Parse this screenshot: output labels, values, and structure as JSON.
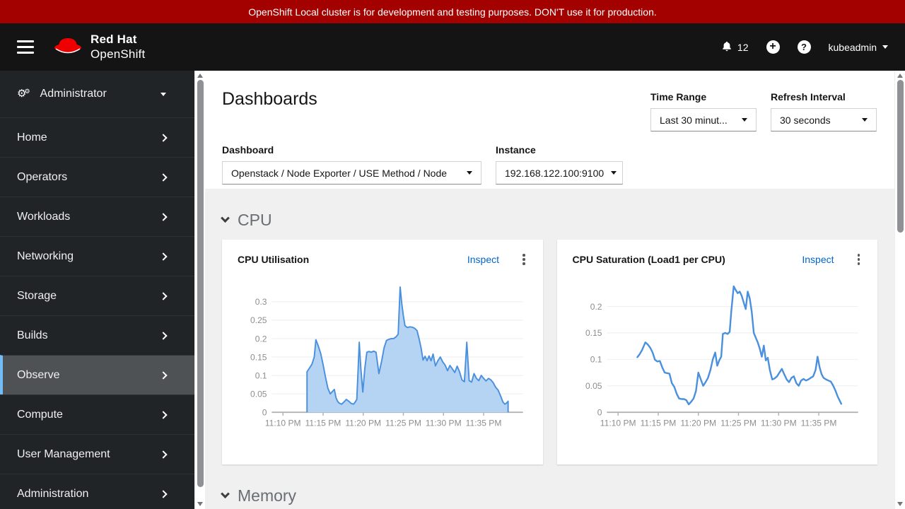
{
  "banner": {
    "text": "OpenShift Local cluster is for development and testing purposes. DON'T use it for production.",
    "background": "#a30000"
  },
  "masthead": {
    "brand_line1": "Red Hat",
    "brand_line2": "OpenShift",
    "notification_count": "12",
    "username": "kubeadmin"
  },
  "sidebar": {
    "perspective_label": "Administrator",
    "selected_accent": "#73bcf7",
    "items": [
      {
        "label": "Home",
        "selected": false
      },
      {
        "label": "Operators",
        "selected": false
      },
      {
        "label": "Workloads",
        "selected": false
      },
      {
        "label": "Networking",
        "selected": false
      },
      {
        "label": "Storage",
        "selected": false
      },
      {
        "label": "Builds",
        "selected": false
      },
      {
        "label": "Observe",
        "selected": true
      },
      {
        "label": "Compute",
        "selected": false
      },
      {
        "label": "User Management",
        "selected": false
      },
      {
        "label": "Administration",
        "selected": false
      }
    ]
  },
  "page": {
    "title": "Dashboards",
    "time_range": {
      "label": "Time Range",
      "value": "Last 30 minut..."
    },
    "refresh_interval": {
      "label": "Refresh Interval",
      "value": "30 seconds"
    },
    "dashboard": {
      "label": "Dashboard",
      "value": "Openstack / Node Exporter / USE Method / Node"
    },
    "instance": {
      "label": "Instance",
      "value": "192.168.122.100:9100"
    },
    "sections": {
      "cpu": "CPU",
      "memory": "Memory"
    },
    "inspect_label": "Inspect"
  },
  "icons": {
    "hamburger": "three-bars",
    "bell": "notification-bell",
    "plus-circle": "add",
    "question-circle": "help",
    "caret-down": "css-triangle",
    "chevron-right": "css-angle",
    "chevron-down": "css-angle",
    "cogs": "⚙",
    "kebab": "three-dots-vertical"
  },
  "colors": {
    "link": "#0066cc",
    "chart_line": "#4a90dd",
    "chart_area_fill": "#b5d3f2",
    "grid": "#ededed",
    "axis": "#b0b3b6",
    "tick_label": "#8b8d8f"
  },
  "chart_data": [
    {
      "type": "area",
      "title": "CPU Utilisation",
      "xlabel": "time",
      "ylabel": "",
      "legend": "none",
      "grid": "horizontal",
      "x_tick_labels": [
        "11:10 PM",
        "11:15 PM",
        "11:20 PM",
        "11:25 PM",
        "11:30 PM",
        "11:35 PM"
      ],
      "x_tick_minutes": [
        10,
        15,
        20,
        25,
        30,
        35
      ],
      "x_domain_minutes": [
        8.6,
        39.9
      ],
      "y_ticks": [
        0,
        0.05,
        0.1,
        0.15,
        0.2,
        0.25,
        0.3
      ],
      "ylim": [
        0,
        0.352
      ],
      "points_minute_value": [
        [
          13.0,
          0.11
        ],
        [
          13.3,
          0.12
        ],
        [
          13.6,
          0.13
        ],
        [
          13.9,
          0.15
        ],
        [
          14.1,
          0.197
        ],
        [
          14.4,
          0.18
        ],
        [
          14.7,
          0.16
        ],
        [
          15.0,
          0.13
        ],
        [
          15.3,
          0.095
        ],
        [
          15.6,
          0.065
        ],
        [
          15.9,
          0.05
        ],
        [
          16.1,
          0.055
        ],
        [
          16.4,
          0.062
        ],
        [
          16.6,
          0.04
        ],
        [
          16.8,
          0.03
        ],
        [
          17.0,
          0.025
        ],
        [
          17.3,
          0.022
        ],
        [
          17.6,
          0.028
        ],
        [
          17.9,
          0.035
        ],
        [
          18.2,
          0.03
        ],
        [
          18.5,
          0.024
        ],
        [
          18.8,
          0.022
        ],
        [
          19.0,
          0.028
        ],
        [
          19.2,
          0.035
        ],
        [
          19.35,
          0.11
        ],
        [
          19.5,
          0.19
        ],
        [
          19.7,
          0.12
        ],
        [
          19.95,
          0.055
        ],
        [
          20.2,
          0.12
        ],
        [
          20.45,
          0.163
        ],
        [
          20.7,
          0.165
        ],
        [
          21.0,
          0.163
        ],
        [
          21.3,
          0.166
        ],
        [
          21.6,
          0.163
        ],
        [
          21.95,
          0.105
        ],
        [
          22.3,
          0.14
        ],
        [
          22.6,
          0.175
        ],
        [
          22.9,
          0.195
        ],
        [
          23.2,
          0.198
        ],
        [
          23.5,
          0.2
        ],
        [
          23.8,
          0.2
        ],
        [
          24.1,
          0.205
        ],
        [
          24.35,
          0.212
        ],
        [
          24.6,
          0.34
        ],
        [
          24.8,
          0.295
        ],
        [
          25.0,
          0.262
        ],
        [
          25.2,
          0.235
        ],
        [
          25.5,
          0.23
        ],
        [
          25.8,
          0.232
        ],
        [
          26.1,
          0.231
        ],
        [
          26.4,
          0.228
        ],
        [
          26.7,
          0.222
        ],
        [
          27.0,
          0.196
        ],
        [
          27.2,
          0.175
        ],
        [
          27.45,
          0.142
        ],
        [
          27.7,
          0.152
        ],
        [
          27.95,
          0.14
        ],
        [
          28.2,
          0.153
        ],
        [
          28.45,
          0.14
        ],
        [
          28.7,
          0.158
        ],
        [
          29.0,
          0.126
        ],
        [
          29.3,
          0.14
        ],
        [
          29.6,
          0.15
        ],
        [
          29.9,
          0.137
        ],
        [
          30.2,
          0.128
        ],
        [
          30.5,
          0.113
        ],
        [
          30.8,
          0.127
        ],
        [
          31.1,
          0.118
        ],
        [
          31.4,
          0.108
        ],
        [
          31.7,
          0.125
        ],
        [
          32.0,
          0.11
        ],
        [
          32.3,
          0.088
        ],
        [
          32.6,
          0.083
        ],
        [
          32.9,
          0.19
        ],
        [
          33.2,
          0.086
        ],
        [
          33.5,
          0.082
        ],
        [
          33.8,
          0.105
        ],
        [
          34.1,
          0.092
        ],
        [
          34.4,
          0.086
        ],
        [
          34.7,
          0.1
        ],
        [
          35.0,
          0.092
        ],
        [
          35.3,
          0.085
        ],
        [
          35.6,
          0.092
        ],
        [
          35.9,
          0.088
        ],
        [
          36.2,
          0.08
        ],
        [
          36.5,
          0.068
        ],
        [
          36.8,
          0.06
        ],
        [
          37.1,
          0.045
        ],
        [
          37.4,
          0.028
        ],
        [
          37.65,
          0.022
        ],
        [
          37.85,
          0.025
        ],
        [
          38.05,
          0.03
        ]
      ]
    },
    {
      "type": "line",
      "title": "CPU Saturation (Load1 per CPU)",
      "xlabel": "time",
      "ylabel": "",
      "legend": "none",
      "grid": "horizontal",
      "x_tick_labels": [
        "11:10 PM",
        "11:15 PM",
        "11:20 PM",
        "11:25 PM",
        "11:30 PM",
        "11:35 PM"
      ],
      "x_tick_minutes": [
        10,
        15,
        20,
        25,
        30,
        35
      ],
      "x_domain_minutes": [
        8.6,
        39.9
      ],
      "y_ticks": [
        0,
        0.05,
        0.1,
        0.15,
        0.2
      ],
      "ylim": [
        0,
        0.245
      ],
      "points_minute_value": [
        [
          12.4,
          0.104
        ],
        [
          12.7,
          0.11
        ],
        [
          13.0,
          0.118
        ],
        [
          13.4,
          0.132
        ],
        [
          13.7,
          0.128
        ],
        [
          14.0,
          0.122
        ],
        [
          14.3,
          0.113
        ],
        [
          14.6,
          0.099
        ],
        [
          14.9,
          0.096
        ],
        [
          15.2,
          0.097
        ],
        [
          15.5,
          0.085
        ],
        [
          15.8,
          0.075
        ],
        [
          16.1,
          0.074
        ],
        [
          16.4,
          0.073
        ],
        [
          16.7,
          0.055
        ],
        [
          17.0,
          0.048
        ],
        [
          17.3,
          0.035
        ],
        [
          17.6,
          0.026
        ],
        [
          17.9,
          0.025
        ],
        [
          18.2,
          0.025
        ],
        [
          18.5,
          0.023
        ],
        [
          18.8,
          0.015
        ],
        [
          19.1,
          0.02
        ],
        [
          19.4,
          0.026
        ],
        [
          19.7,
          0.04
        ],
        [
          20.0,
          0.075
        ],
        [
          20.3,
          0.062
        ],
        [
          20.6,
          0.05
        ],
        [
          20.9,
          0.057
        ],
        [
          21.2,
          0.065
        ],
        [
          21.5,
          0.08
        ],
        [
          21.8,
          0.1
        ],
        [
          22.1,
          0.113
        ],
        [
          22.35,
          0.088
        ],
        [
          22.6,
          0.098
        ],
        [
          22.85,
          0.105
        ],
        [
          23.05,
          0.148
        ],
        [
          23.35,
          0.15
        ],
        [
          23.65,
          0.148
        ],
        [
          23.9,
          0.152
        ],
        [
          24.1,
          0.19
        ],
        [
          24.4,
          0.238
        ],
        [
          24.65,
          0.231
        ],
        [
          24.9,
          0.225
        ],
        [
          25.15,
          0.228
        ],
        [
          25.4,
          0.22
        ],
        [
          25.65,
          0.207
        ],
        [
          25.9,
          0.195
        ],
        [
          26.15,
          0.228
        ],
        [
          26.4,
          0.215
        ],
        [
          26.65,
          0.19
        ],
        [
          26.9,
          0.15
        ],
        [
          27.15,
          0.141
        ],
        [
          27.4,
          0.132
        ],
        [
          27.65,
          0.12
        ],
        [
          27.9,
          0.105
        ],
        [
          28.15,
          0.126
        ],
        [
          28.4,
          0.098
        ],
        [
          28.65,
          0.103
        ],
        [
          28.9,
          0.08
        ],
        [
          29.2,
          0.062
        ],
        [
          29.5,
          0.064
        ],
        [
          29.8,
          0.068
        ],
        [
          30.1,
          0.075
        ],
        [
          30.4,
          0.082
        ],
        [
          30.7,
          0.072
        ],
        [
          31.0,
          0.062
        ],
        [
          31.3,
          0.057
        ],
        [
          31.6,
          0.065
        ],
        [
          31.9,
          0.068
        ],
        [
          32.2,
          0.055
        ],
        [
          32.5,
          0.05
        ],
        [
          32.8,
          0.06
        ],
        [
          33.1,
          0.063
        ],
        [
          33.4,
          0.06
        ],
        [
          33.7,
          0.062
        ],
        [
          34.0,
          0.065
        ],
        [
          34.3,
          0.068
        ],
        [
          34.6,
          0.08
        ],
        [
          34.85,
          0.105
        ],
        [
          35.1,
          0.085
        ],
        [
          35.35,
          0.072
        ],
        [
          35.6,
          0.065
        ],
        [
          35.9,
          0.062
        ],
        [
          36.2,
          0.06
        ],
        [
          36.5,
          0.058
        ],
        [
          36.8,
          0.05
        ],
        [
          37.1,
          0.04
        ],
        [
          37.35,
          0.03
        ],
        [
          37.6,
          0.022
        ],
        [
          37.8,
          0.016
        ]
      ]
    }
  ]
}
